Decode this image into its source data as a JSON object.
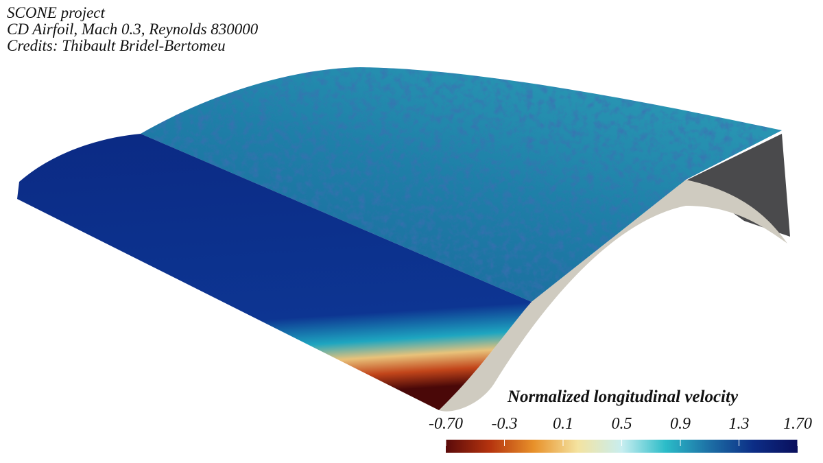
{
  "header": {
    "lines": [
      "SCONE project",
      "CD Airfoil, Mach 0.3, Reynolds 830000",
      "Credits: Thibault Bridel-Bertomeu"
    ]
  },
  "colorbar": {
    "title": "Normalized longitudinal velocity",
    "lim": [
      -0.7,
      1.7
    ],
    "ticks": [
      {
        "value": -0.7,
        "label": "-0.70"
      },
      -0.3,
      0.1,
      0.5,
      0.9,
      1.3,
      {
        "value": 1.7,
        "label": "1.70"
      }
    ],
    "colors": [
      "#5a0a0a",
      "#b5330e",
      "#e8912a",
      "#f4e3a0",
      "#c8eef0",
      "#2bbcc8",
      "#1d6fa5",
      "#0c2d86",
      "#0a0f5c"
    ]
  }
}
